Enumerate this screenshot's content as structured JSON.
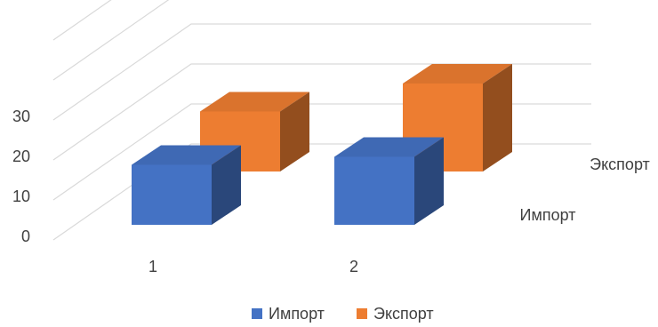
{
  "chart_data": {
    "type": "bar",
    "subtype": "3d-column",
    "title": "",
    "xlabel": "",
    "ylabel": "",
    "categories": [
      "1",
      "2"
    ],
    "series": [
      {
        "name": "Импорт",
        "values": [
          15,
          17
        ],
        "color": "#4472C4"
      },
      {
        "name": "Экспорт",
        "values": [
          15,
          22
        ],
        "color": "#ED7D31"
      }
    ],
    "ylim": [
      0,
      50
    ],
    "yticks": [
      "0",
      "10",
      "20",
      "30"
    ],
    "grid": true,
    "gridlines": [
      0,
      10,
      20,
      30,
      40,
      50
    ],
    "legend_position": "bottom"
  }
}
